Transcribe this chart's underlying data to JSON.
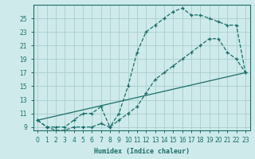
{
  "xlabel": "Humidex (Indice chaleur)",
  "bg_color": "#ceeaea",
  "grid_color": "#aacece",
  "line_color": "#1a6e6a",
  "xlim": [
    -0.5,
    23.5
  ],
  "ylim": [
    8.5,
    27.0
  ],
  "xticks": [
    0,
    1,
    2,
    3,
    4,
    5,
    6,
    7,
    8,
    9,
    10,
    11,
    12,
    13,
    14,
    15,
    16,
    17,
    18,
    19,
    20,
    21,
    22,
    23
  ],
  "yticks": [
    9,
    11,
    13,
    15,
    17,
    19,
    21,
    23,
    25
  ],
  "line1_x": [
    0,
    1,
    2,
    3,
    4,
    5,
    6,
    7,
    8,
    9,
    10,
    11,
    12,
    13,
    14,
    15,
    16,
    17,
    18,
    19,
    20,
    21,
    22,
    23
  ],
  "line1_y": [
    10,
    9,
    9,
    9,
    10,
    11,
    11,
    12,
    9,
    10,
    11,
    12,
    14,
    16,
    17,
    18,
    19,
    20,
    21,
    22,
    22,
    20,
    19,
    17
  ],
  "line2_x": [
    0,
    1,
    2,
    3,
    4,
    5,
    6,
    7,
    8,
    9,
    10,
    11,
    12,
    13,
    14,
    15,
    16,
    17,
    18,
    19,
    20,
    21,
    22,
    23
  ],
  "line2_y": [
    10,
    9,
    8.5,
    8.5,
    9,
    9,
    9,
    9.5,
    9,
    11,
    15,
    20,
    23,
    24,
    25,
    26,
    26.5,
    25.5,
    25.5,
    25,
    24.5,
    24,
    24,
    17
  ],
  "line3_x": [
    0,
    23
  ],
  "line3_y": [
    10,
    17
  ]
}
